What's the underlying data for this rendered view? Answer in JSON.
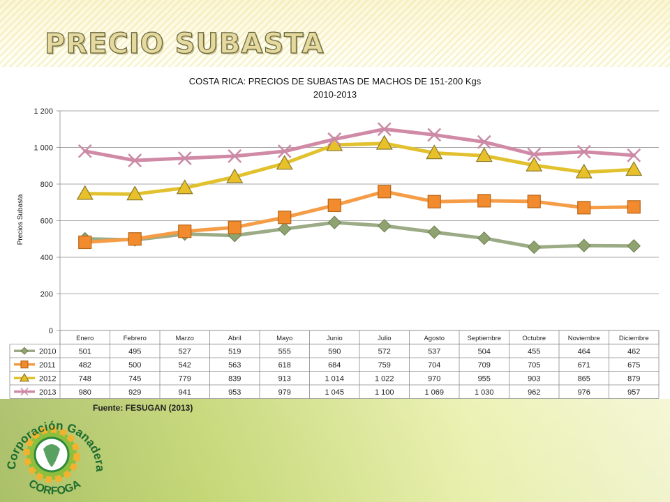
{
  "slide": {
    "title": "PRECIO SUBASTA",
    "source": "Fuente: FESUGAN (2013)",
    "logo_top": "Corporación Ganadera",
    "logo_bottom": "CORFOGA"
  },
  "chart_data": {
    "type": "line",
    "title": "COSTA RICA: PRECIOS DE SUBASTAS DE MACHOS DE 151-200 Kgs",
    "subtitle": "2010-2013",
    "ylabel": "Precios Subasta",
    "xlabel": "",
    "ylim": [
      0,
      1200
    ],
    "yticks": [
      0,
      200,
      400,
      600,
      800,
      1000,
      1200
    ],
    "ytick_labels": [
      "0",
      "200",
      "400",
      "600",
      "800",
      "1 000",
      "1 200"
    ],
    "grid": true,
    "legend": "data-table",
    "categories": [
      "Enero",
      "Febrero",
      "Marzo",
      "Abril",
      "Mayo",
      "Junio",
      "Julio",
      "Agosto",
      "Septiembre",
      "Octubre",
      "Noviembre",
      "Diciembre"
    ],
    "series": [
      {
        "name": "2010",
        "color": "#9bab85",
        "marker": "diamond",
        "values": [
          501,
          495,
          527,
          519,
          555,
          590,
          572,
          537,
          504,
          455,
          464,
          462
        ],
        "labels": [
          "501",
          "495",
          "527",
          "519",
          "555",
          "590",
          "572",
          "537",
          "504",
          "455",
          "464",
          "462"
        ]
      },
      {
        "name": "2011",
        "color": "#f59c46",
        "marker": "square",
        "values": [
          482,
          500,
          542,
          563,
          618,
          684,
          759,
          704,
          709,
          705,
          671,
          675
        ],
        "labels": [
          "482",
          "500",
          "542",
          "563",
          "618",
          "684",
          "759",
          "704",
          "709",
          "705",
          "671",
          "675"
        ]
      },
      {
        "name": "2012",
        "color": "#e2c12e",
        "marker": "triangle",
        "values": [
          748,
          745,
          779,
          839,
          913,
          1014,
          1022,
          970,
          955,
          903,
          865,
          879
        ],
        "labels": [
          "748",
          "745",
          "779",
          "839",
          "913",
          "1 014",
          "1 022",
          "970",
          "955",
          "903",
          "865",
          "879"
        ]
      },
      {
        "name": "2013",
        "color": "#d08aa6",
        "marker": "x",
        "values": [
          980,
          929,
          941,
          953,
          979,
          1045,
          1100,
          1069,
          1030,
          962,
          976,
          957
        ],
        "labels": [
          "980",
          "929",
          "941",
          "953",
          "979",
          "1 045",
          "1 100",
          "1 069",
          "1 030",
          "962",
          "976",
          "957"
        ]
      }
    ]
  }
}
